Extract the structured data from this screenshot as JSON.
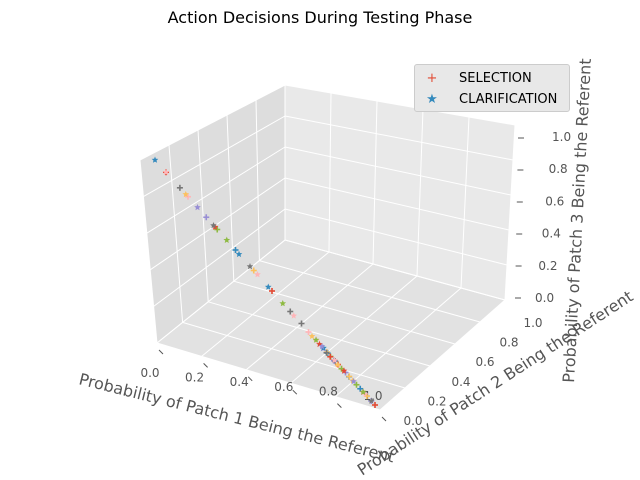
{
  "title": "Action Decisions During Testing Phase",
  "legend": {
    "selection_label": "SELECTION",
    "clarification_label": "CLARIFICATION"
  },
  "colors": {
    "panel": "#e5e5e5",
    "grid": "#ffffff",
    "text": "#555555",
    "series_cycle": [
      "#e24a33",
      "#348abd",
      "#988ed5",
      "#777777",
      "#fbc15e",
      "#8eba42",
      "#ffb5b8"
    ]
  },
  "chart_data": {
    "type": "scatter",
    "projection": "3d",
    "title": "Action Decisions During Testing Phase",
    "xlabel": "Probability of Patch 1 Being the Referent",
    "ylabel": "Probability of Patch 2 Being the Referent",
    "zlabel": "Probability of Patch 3 Being the Referent",
    "xlim": [
      0,
      1
    ],
    "ylim": [
      0,
      1
    ],
    "zlim": [
      0,
      1
    ],
    "x_ticks": [
      "0.0",
      "0.2",
      "0.4",
      "0.6",
      "0.8",
      "1.0"
    ],
    "y_ticks": [
      "0.0",
      "0.2",
      "0.4",
      "0.6",
      "0.8",
      "1.0"
    ],
    "z_ticks": [
      "0.0",
      "0.2",
      "0.4",
      "0.6",
      "0.8",
      "1.0"
    ],
    "grid": true,
    "legend_position": "top-right",
    "series": [
      {
        "name": "SELECTION",
        "marker": "plus",
        "points": [
          [
            0.05,
            0.0,
            0.95
          ],
          [
            0.1,
            0.02,
            0.88
          ],
          [
            0.15,
            0.0,
            0.85
          ],
          [
            0.2,
            0.05,
            0.75
          ],
          [
            0.25,
            0.05,
            0.7
          ],
          [
            0.3,
            0.1,
            0.6
          ],
          [
            0.35,
            0.15,
            0.5
          ],
          [
            0.4,
            0.2,
            0.4
          ],
          [
            0.45,
            0.25,
            0.3
          ],
          [
            0.5,
            0.3,
            0.2
          ],
          [
            0.55,
            0.35,
            0.1
          ],
          [
            0.6,
            0.3,
            0.1
          ],
          [
            0.62,
            0.25,
            0.13
          ],
          [
            0.65,
            0.2,
            0.15
          ],
          [
            0.7,
            0.2,
            0.1
          ],
          [
            0.72,
            0.15,
            0.13
          ],
          [
            0.75,
            0.15,
            0.1
          ],
          [
            0.8,
            0.1,
            0.1
          ],
          [
            0.85,
            0.1,
            0.05
          ],
          [
            0.9,
            0.05,
            0.05
          ],
          [
            0.95,
            0.02,
            0.03
          ],
          [
            1.0,
            0.0,
            0.0
          ],
          [
            0.6,
            0.1,
            0.3
          ],
          [
            0.7,
            0.05,
            0.25
          ],
          [
            0.55,
            0.4,
            0.05
          ],
          [
            0.65,
            0.3,
            0.05
          ],
          [
            0.75,
            0.2,
            0.05
          ],
          [
            0.85,
            0.05,
            0.1
          ],
          [
            0.5,
            0.45,
            0.05
          ],
          [
            0.45,
            0.5,
            0.05
          ],
          [
            0.9,
            0.08,
            0.02
          ],
          [
            0.95,
            0.05,
            0.0
          ]
        ]
      },
      {
        "name": "CLARIFICATION",
        "marker": "star",
        "points": [
          [
            0.0,
            0.0,
            1.0
          ],
          [
            0.05,
            0.0,
            0.95
          ],
          [
            0.12,
            0.03,
            0.85
          ],
          [
            0.18,
            0.02,
            0.8
          ],
          [
            0.22,
            0.08,
            0.7
          ],
          [
            0.28,
            0.07,
            0.65
          ],
          [
            0.3,
            0.2,
            0.5
          ],
          [
            0.35,
            0.25,
            0.4
          ],
          [
            0.4,
            0.35,
            0.25
          ],
          [
            0.45,
            0.4,
            0.15
          ],
          [
            0.5,
            0.4,
            0.1
          ],
          [
            0.55,
            0.3,
            0.15
          ],
          [
            0.6,
            0.2,
            0.2
          ],
          [
            0.65,
            0.25,
            0.1
          ],
          [
            0.7,
            0.1,
            0.2
          ],
          [
            0.75,
            0.1,
            0.15
          ],
          [
            0.8,
            0.15,
            0.05
          ],
          [
            0.85,
            0.08,
            0.07
          ],
          [
            0.88,
            0.1,
            0.02
          ],
          [
            0.92,
            0.04,
            0.04
          ],
          [
            0.97,
            0.02,
            0.01
          ],
          [
            0.25,
            0.2,
            0.55
          ],
          [
            0.4,
            0.1,
            0.5
          ],
          [
            0.58,
            0.38,
            0.04
          ],
          [
            0.68,
            0.12,
            0.2
          ],
          [
            0.78,
            0.12,
            0.1
          ],
          [
            0.35,
            0.35,
            0.3
          ],
          [
            0.2,
            0.1,
            0.7
          ]
        ]
      }
    ]
  }
}
